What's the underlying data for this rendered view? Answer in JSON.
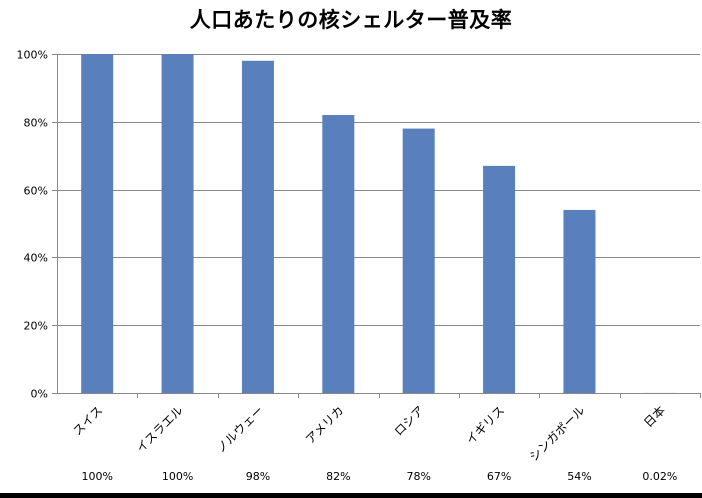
{
  "chart_data": {
    "type": "bar",
    "title": "人口あたりの核シェルター普及率",
    "xlabel": "",
    "ylabel": "",
    "categories": [
      "スイス",
      "イスラエル",
      "ノルウェー",
      "アメリカ",
      "ロシア",
      "イギリス",
      "シンガポール",
      "日本"
    ],
    "values": [
      100,
      100,
      98,
      82,
      78,
      67,
      54,
      0.02
    ],
    "value_labels": [
      "100%",
      "100%",
      "98%",
      "82%",
      "78%",
      "67%",
      "54%",
      "0.02%"
    ],
    "yticks": [
      "0%",
      "20%",
      "40%",
      "60%",
      "80%",
      "100%"
    ],
    "ytick_values": [
      0,
      20,
      40,
      60,
      80,
      100
    ],
    "ylim": [
      0,
      100
    ],
    "grid": true,
    "bar_color": "#5a7fbd",
    "grid_color": "#888888"
  }
}
